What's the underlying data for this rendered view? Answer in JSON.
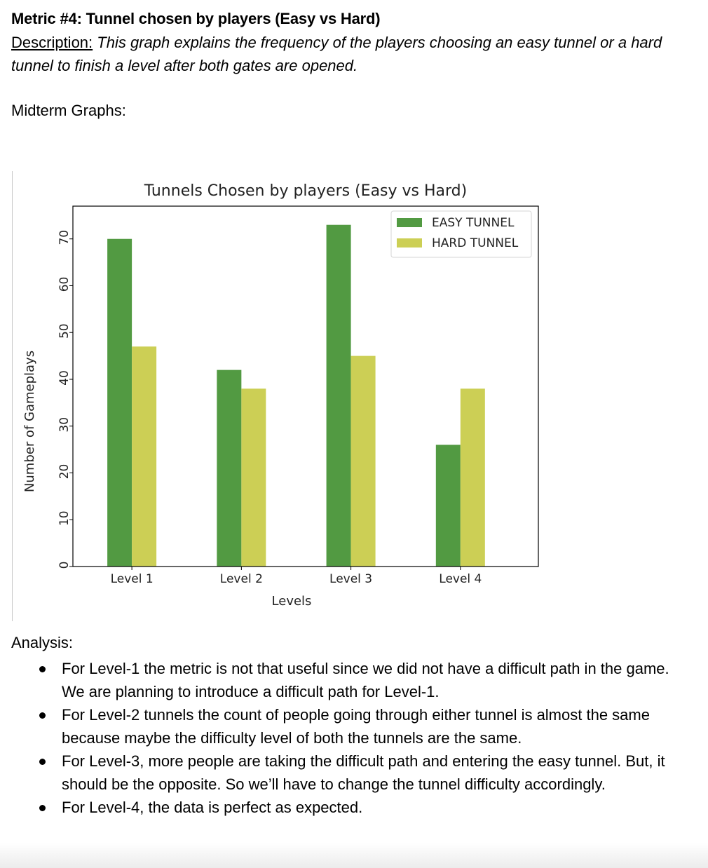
{
  "heading": "Metric #4: Tunnel chosen by players (Easy vs Hard)",
  "description": {
    "label": "Description:",
    "text": "This graph explains the frequency of the players choosing an easy tunnel or a hard tunnel to finish a level after both gates are opened."
  },
  "subheading": "Midterm Graphs:",
  "chart_data": {
    "type": "bar",
    "title": "Tunnels Chosen by players (Easy vs Hard)",
    "xlabel": "Levels",
    "ylabel": "Number of Gameplays",
    "categories": [
      "Level 1",
      "Level 2",
      "Level 3",
      "Level 4"
    ],
    "series": [
      {
        "name": "EASY TUNNEL",
        "values": [
          70,
          42,
          73,
          26
        ],
        "color": "#529a42"
      },
      {
        "name": "HARD TUNNEL",
        "values": [
          47,
          38,
          45,
          38
        ],
        "color": "#cccf55"
      }
    ],
    "ylim": [
      0,
      77
    ],
    "yticks": [
      0,
      10,
      20,
      30,
      40,
      50,
      60,
      70
    ],
    "grid": false,
    "legend": "top-right"
  },
  "analysis": {
    "title": "Analysis:",
    "items": [
      "For Level-1 the metric is not that useful since we did not have a difficult path in the game. We are planning to introduce a difficult path for Level-1.",
      "For Level-2 tunnels the count of people going through either tunnel is almost the same because maybe the difficulty level of both the tunnels are the same.",
      "For Level-3, more people are taking the difficult path and entering the easy tunnel. But, it should be the opposite. So we’ll have to change the tunnel difficulty accordingly.",
      "For Level-4, the data is perfect as expected."
    ]
  }
}
